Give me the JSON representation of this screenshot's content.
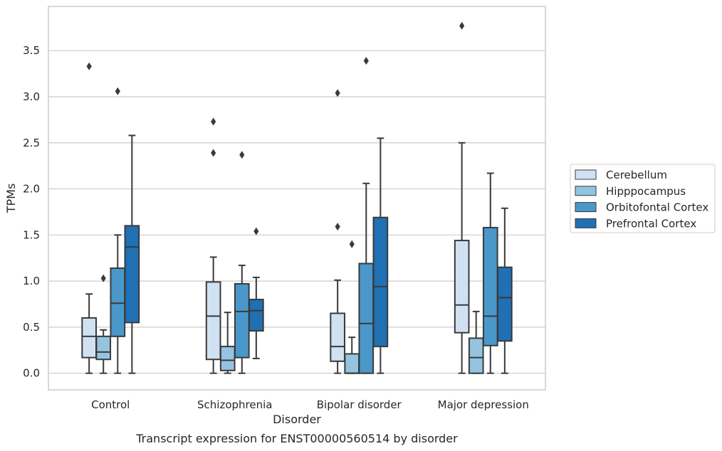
{
  "chart_data": {
    "type": "box",
    "title": "",
    "caption": "Transcript expression for ENST00000560514 by disorder",
    "xlabel": "Disorder",
    "ylabel": "TPMs",
    "ylim": [
      -0.18,
      3.98
    ],
    "yticks": [
      "0.0",
      "0.5",
      "1.0",
      "1.5",
      "2.0",
      "2.5",
      "3.0",
      "3.5"
    ],
    "categories": [
      "Control",
      "Schizophrenia",
      "Bipolar disorder",
      "Major depression"
    ],
    "legend_position": "right",
    "grid": true,
    "series": [
      {
        "name": "Cerebellum",
        "color": "#d0e1f2",
        "boxes": [
          {
            "whisker_low": 0.0,
            "q1": 0.17,
            "median": 0.4,
            "q3": 0.6,
            "whisker_high": 0.86,
            "outliers": [
              3.33
            ]
          },
          {
            "whisker_low": 0.0,
            "q1": 0.15,
            "median": 0.62,
            "q3": 0.99,
            "whisker_high": 1.26,
            "outliers": [
              2.39,
              2.73
            ]
          },
          {
            "whisker_low": 0.0,
            "q1": 0.13,
            "median": 0.29,
            "q3": 0.65,
            "whisker_high": 1.01,
            "outliers": [
              1.59,
              3.04
            ]
          },
          {
            "whisker_low": 0.0,
            "q1": 0.44,
            "median": 0.74,
            "q3": 1.44,
            "whisker_high": 2.5,
            "outliers": [
              3.77
            ]
          }
        ]
      },
      {
        "name": "Hipppocampus",
        "color": "#94c4df",
        "boxes": [
          {
            "whisker_low": 0.0,
            "q1": 0.15,
            "median": 0.23,
            "q3": 0.4,
            "whisker_high": 0.47,
            "outliers": [
              1.03
            ]
          },
          {
            "whisker_low": 0.0,
            "q1": 0.03,
            "median": 0.14,
            "q3": 0.29,
            "whisker_high": 0.66,
            "outliers": []
          },
          {
            "whisker_low": 0.0,
            "q1": 0.0,
            "median": 0.0,
            "q3": 0.21,
            "whisker_high": 0.39,
            "outliers": [
              1.4
            ]
          },
          {
            "whisker_low": 0.0,
            "q1": 0.0,
            "median": 0.17,
            "q3": 0.38,
            "whisker_high": 0.67,
            "outliers": []
          }
        ]
      },
      {
        "name": "Orbitofontal Cortex",
        "color": "#4a98c9",
        "boxes": [
          {
            "whisker_low": 0.0,
            "q1": 0.4,
            "median": 0.76,
            "q3": 1.14,
            "whisker_high": 1.5,
            "outliers": [
              3.06
            ]
          },
          {
            "whisker_low": 0.0,
            "q1": 0.17,
            "median": 0.67,
            "q3": 0.97,
            "whisker_high": 1.17,
            "outliers": [
              2.37
            ]
          },
          {
            "whisker_low": 0.0,
            "q1": 0.0,
            "median": 0.54,
            "q3": 1.19,
            "whisker_high": 2.06,
            "outliers": [
              3.39
            ]
          },
          {
            "whisker_low": 0.0,
            "q1": 0.3,
            "median": 0.62,
            "q3": 1.58,
            "whisker_high": 2.17,
            "outliers": []
          }
        ]
      },
      {
        "name": "Prefrontal Cortex",
        "color": "#2070b4",
        "boxes": [
          {
            "whisker_low": 0.0,
            "q1": 0.55,
            "median": 1.37,
            "q3": 1.6,
            "whisker_high": 2.58,
            "outliers": []
          },
          {
            "whisker_low": 0.16,
            "q1": 0.46,
            "median": 0.68,
            "q3": 0.8,
            "whisker_high": 1.04,
            "outliers": [
              1.54
            ]
          },
          {
            "whisker_low": 0.0,
            "q1": 0.29,
            "median": 0.94,
            "q3": 1.69,
            "whisker_high": 2.55,
            "outliers": []
          },
          {
            "whisker_low": 0.0,
            "q1": 0.35,
            "median": 0.82,
            "q3": 1.15,
            "whisker_high": 1.79,
            "outliers": []
          }
        ]
      }
    ]
  }
}
